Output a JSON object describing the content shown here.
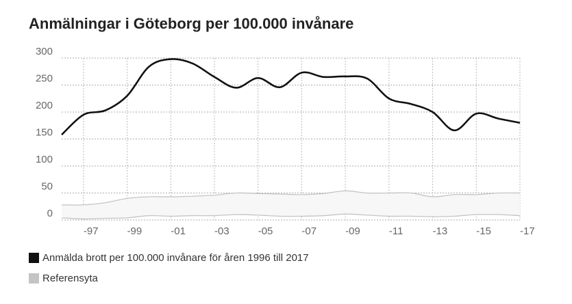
{
  "chart_data": {
    "type": "line",
    "title": "Anmälningar i Göteborg per 100.000 invånare",
    "xlabel": "",
    "ylabel": "",
    "x": [
      1996,
      1997,
      1998,
      1999,
      2000,
      2001,
      2002,
      2003,
      2004,
      2005,
      2006,
      2007,
      2008,
      2009,
      2010,
      2011,
      2012,
      2013,
      2014,
      2015,
      2016,
      2017
    ],
    "xlim": [
      1996,
      2017
    ],
    "ylim": [
      0,
      300
    ],
    "grid": true,
    "y_ticks": [
      "300",
      "250",
      "200",
      "150",
      "100",
      "50",
      "0"
    ],
    "y_tick_values": [
      300,
      250,
      200,
      150,
      100,
      50,
      0
    ],
    "x_ticks": [
      "-97",
      "-99",
      "-01",
      "-03",
      "-05",
      "-07",
      "-09",
      "-11",
      "-13",
      "-15",
      "-17"
    ],
    "x_tick_values": [
      1997,
      1999,
      2001,
      2003,
      2005,
      2007,
      2009,
      2011,
      2013,
      2015,
      2017
    ],
    "series": [
      {
        "name": "Anmälda brott per 100.000 invånare för åren 1996 till 2017",
        "color": "#111111",
        "type": "line",
        "values": [
          158,
          195,
          203,
          230,
          284,
          298,
          290,
          265,
          245,
          263,
          246,
          273,
          265,
          266,
          262,
          225,
          215,
          200,
          166,
          197,
          188,
          180
        ]
      },
      {
        "name": "Referensyta",
        "color": "#c4c4c4",
        "type": "band",
        "upper": [
          28,
          28,
          32,
          40,
          43,
          43,
          44,
          46,
          50,
          49,
          48,
          47,
          49,
          54,
          50,
          50,
          50,
          43,
          47,
          47,
          50,
          50
        ],
        "lower": [
          4,
          2,
          3,
          4,
          8,
          7,
          8,
          8,
          10,
          9,
          7,
          7,
          8,
          11,
          9,
          7,
          7,
          6,
          7,
          10,
          10,
          8
        ]
      }
    ],
    "legend_position": "bottom-left"
  }
}
